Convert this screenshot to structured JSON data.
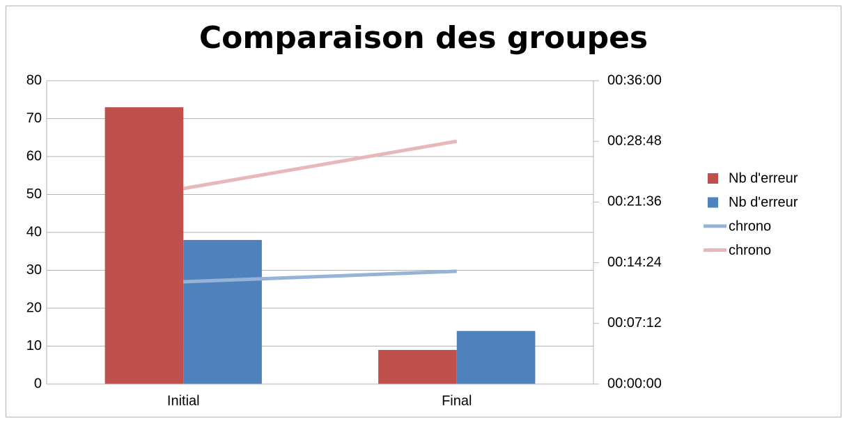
{
  "chart_data": {
    "type": "bar",
    "title": "Comparaison des groupes",
    "categories": [
      "Initial",
      "Final"
    ],
    "series": [
      {
        "name": "Nb d'erreur",
        "type": "bar",
        "color": "#c0504d",
        "values": [
          73,
          9
        ]
      },
      {
        "name": "Nb d'erreur",
        "type": "bar",
        "color": "#4f81bd",
        "values": [
          38,
          14
        ]
      },
      {
        "name": "chrono",
        "type": "line",
        "axis": "y2",
        "color": "#95b3d7",
        "values": [
          728,
          803
        ]
      },
      {
        "name": "chrono",
        "type": "line",
        "axis": "y2",
        "color": "#e6b9b8",
        "values": [
          1392,
          1729
        ]
      }
    ],
    "ylim": [
      0,
      80
    ],
    "yticks": [
      0,
      10,
      20,
      30,
      40,
      50,
      60,
      70,
      80
    ],
    "y2lim": [
      0,
      2160
    ],
    "y2ticks": [
      {
        "value": 0,
        "label": "00:00:00"
      },
      {
        "value": 432,
        "label": "00:07:12"
      },
      {
        "value": 864,
        "label": "00:14:24"
      },
      {
        "value": 1296,
        "label": "00:21:36"
      },
      {
        "value": 1728,
        "label": "00:28:48"
      },
      {
        "value": 2160,
        "label": "00:36:00"
      }
    ],
    "grid": true,
    "legend": "right"
  }
}
